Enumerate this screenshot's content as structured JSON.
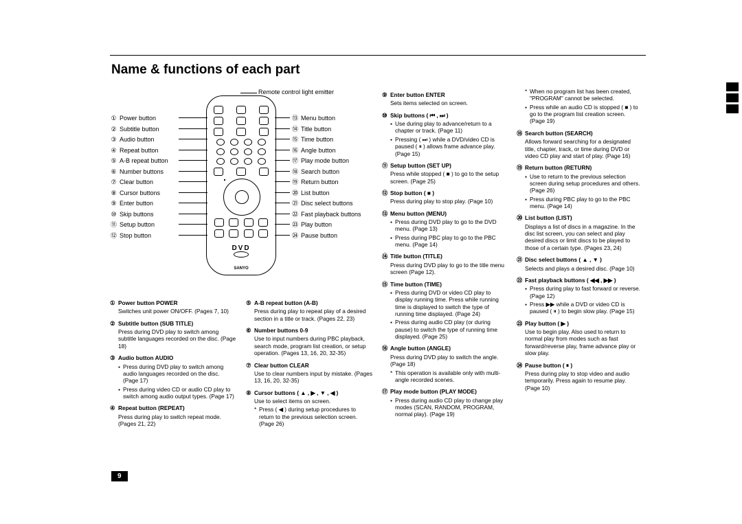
{
  "page_number": "9",
  "title": "Name & functions of each part",
  "emitter": "Remote control light emitter",
  "left_labels": [
    {
      "n": "①",
      "t": "Power button"
    },
    {
      "n": "②",
      "t": "Subtitle button"
    },
    {
      "n": "③",
      "t": "Audio button"
    },
    {
      "n": "④",
      "t": "Repeat button"
    },
    {
      "n": "⑤",
      "t": "A-B repeat button"
    },
    {
      "n": "⑥",
      "t": "Number buttons"
    },
    {
      "n": "⑦",
      "t": "Clear button"
    },
    {
      "n": "⑧",
      "t": "Cursor buttons"
    },
    {
      "n": "⑨",
      "t": "Enter button"
    },
    {
      "n": "⑩",
      "t": "Skip buttons"
    },
    {
      "n": "⑪",
      "t": "Setup button"
    },
    {
      "n": "⑫",
      "t": "Stop button"
    }
  ],
  "right_labels": [
    {
      "n": "⑬",
      "t": "Menu button"
    },
    {
      "n": "⑭",
      "t": "Title button"
    },
    {
      "n": "⑮",
      "t": "Time button"
    },
    {
      "n": "⑯",
      "t": "Angle button"
    },
    {
      "n": "⑰",
      "t": "Play mode button"
    },
    {
      "n": "⑱",
      "t": "Search button"
    },
    {
      "n": "⑲",
      "t": "Return button"
    },
    {
      "n": "⑳",
      "t": "List button"
    },
    {
      "n": "㉑",
      "t": "Disc select buttons"
    },
    {
      "n": "㉒",
      "t": "Fast playback buttons"
    },
    {
      "n": "㉓",
      "t": "Play button"
    },
    {
      "n": "㉔",
      "t": "Pause button"
    }
  ],
  "dvd_logo": "DVD",
  "brand": "SANYO",
  "col1": [
    {
      "n": "①",
      "h": "Power button POWER",
      "lines": [
        {
          "t": "desc",
          "x": "Switches unit power ON/OFF. (Pages 7, 10)"
        }
      ]
    },
    {
      "n": "②",
      "h": "Subtitle button (SUB TITLE)",
      "lines": [
        {
          "t": "desc",
          "x": "Press during DVD play to switch among subtitle languages recorded on the disc. (Page 18)"
        }
      ]
    },
    {
      "n": "③",
      "h": "Audio button AUDIO",
      "lines": [
        {
          "t": "bul",
          "x": "Press during DVD play to switch among audio languages recorded on the disc. (Page 17)"
        },
        {
          "t": "bul",
          "x": "Press during video CD or audio CD play to switch among audio output types. (Page 17)"
        }
      ]
    },
    {
      "n": "④",
      "h": "Repeat button (REPEAT)",
      "lines": [
        {
          "t": "desc",
          "x": "Press during play to switch repeat mode. (Pages 21, 22)"
        }
      ]
    }
  ],
  "col2": [
    {
      "n": "⑤",
      "h": "A-B repeat button (A-B)",
      "lines": [
        {
          "t": "desc",
          "x": "Press during play to repeat play of a desired section in a title or track. (Pages 22, 23)"
        }
      ]
    },
    {
      "n": "⑥",
      "h": "Number buttons 0-9",
      "lines": [
        {
          "t": "desc",
          "x": "Use to input numbers during PBC playback, search mode, program list creation, or setup operation. (Pages 13, 16, 20, 32-35)"
        }
      ]
    },
    {
      "n": "⑦",
      "h": "Clear button CLEAR",
      "lines": [
        {
          "t": "desc",
          "x": "Use to clear numbers input by mistake. (Pages 13, 16, 20, 32-35)"
        }
      ]
    },
    {
      "n": "⑧",
      "h": "Cursor buttons ( ▲ , ▶ , ▼ , ◀ )",
      "lines": [
        {
          "t": "desc",
          "x": "Use to select items on screen."
        },
        {
          "t": "fn",
          "x": "Press ( ◀ ) during setup procedures to return to the previous selection screen. (Page 26)"
        }
      ]
    }
  ],
  "col3": [
    {
      "n": "⑨",
      "h": "Enter button ENTER",
      "lines": [
        {
          "t": "desc",
          "x": "Sets items selected on screen."
        }
      ]
    },
    {
      "n": "⑩",
      "h": "Skip buttons ( ⏮ , ⏭ )",
      "lines": [
        {
          "t": "bul",
          "x": "Use during play to advance/return to a chapter or track. (Page 11)"
        },
        {
          "t": "bul",
          "x": "Pressing ( ⏭ ) while a DVD/video CD is paused ( ⏸ ) allows frame advance play. (Page 15)"
        }
      ]
    },
    {
      "n": "⑪",
      "h": "Setup button (SET UP)",
      "lines": [
        {
          "t": "desc",
          "x": "Press while stopped ( ■ ) to go to the setup screen. (Page 25)"
        }
      ]
    },
    {
      "n": "⑫",
      "h": "Stop button ( ■ )",
      "lines": [
        {
          "t": "desc",
          "x": "Press during play to stop play. (Page 10)"
        }
      ]
    },
    {
      "n": "⑬",
      "h": "Menu button (MENU)",
      "lines": [
        {
          "t": "bul",
          "x": "Press during DVD play to go to the DVD menu. (Page 13)"
        },
        {
          "t": "bul",
          "x": "Press during PBC play to go to the PBC menu. (Page 14)"
        }
      ]
    },
    {
      "n": "⑭",
      "h": "Title button (TITLE)",
      "lines": [
        {
          "t": "desc",
          "x": "Press during DVD play to go to the title menu screen (Page 12)."
        }
      ]
    },
    {
      "n": "⑮",
      "h": "Time button (TIME)",
      "lines": [
        {
          "t": "bul",
          "x": "Press during DVD or video CD play to display running time. Press while running time is displayed to switch the type of running time displayed. (Page 24)"
        },
        {
          "t": "bul",
          "x": "Press during audio CD play (or during pause) to switch the type of running time displayed. (Page 25)"
        }
      ]
    },
    {
      "n": "⑯",
      "h": "Angle button (ANGLE)",
      "lines": [
        {
          "t": "desc",
          "x": "Press during DVD play to switch the angle. (Page 18)"
        },
        {
          "t": "fn",
          "x": "This operation is available only with multi-angle recorded scenes."
        }
      ]
    },
    {
      "n": "⑰",
      "h": "Play mode button (PLAY MODE)",
      "lines": [
        {
          "t": "bul",
          "x": "Press during audio CD play to change play modes (SCAN, RANDOM, PROGRAM, normal play). (Page 19)"
        }
      ]
    }
  ],
  "col4": [
    {
      "n": "",
      "h": "",
      "lines": [
        {
          "t": "fn",
          "x": "When no program list has been created, \"PROGRAM\" cannot be selected."
        },
        {
          "t": "bul",
          "x": "Press while an audio CD is stopped ( ■ ) to go to the program list creation screen. (Page 19)"
        }
      ]
    },
    {
      "n": "⑱",
      "h": "Search button (SEARCH)",
      "lines": [
        {
          "t": "desc",
          "x": "Allows forward searching for a designated title, chapter, track, or time during DVD or video CD play and start of play. (Page 16)"
        }
      ]
    },
    {
      "n": "⑲",
      "h": "Return button (RETURN)",
      "lines": [
        {
          "t": "bul",
          "x": "Use to return to the previous selection screen during setup procedures and others. (Page 26)"
        },
        {
          "t": "bul",
          "x": "Press during PBC play to go to the PBC menu. (Page 14)"
        }
      ]
    },
    {
      "n": "⑳",
      "h": "List button (LIST)",
      "lines": [
        {
          "t": "desc",
          "x": "Displays a list of discs in a magazine. In the disc list screen, you can select and play desired discs or limit discs to be played to those of a certain type. (Pages 23, 24)"
        }
      ]
    },
    {
      "n": "㉑",
      "h": "Disc select buttons ( ▲ , ▼ )",
      "lines": [
        {
          "t": "desc",
          "x": "Selects and plays a desired disc. (Page 10)"
        }
      ]
    },
    {
      "n": "㉒",
      "h": "Fast playback buttons ( ◀◀ , ▶▶ )",
      "lines": [
        {
          "t": "bul",
          "x": "Press during play to fast forward or reverse. (Page 12)"
        },
        {
          "t": "bul",
          "x": "Press ▶▶ while a DVD or video CD is paused ( ⏸ ) to begin slow play. (Page 15)"
        }
      ]
    },
    {
      "n": "㉓",
      "h": "Play button ( ▶ )",
      "lines": [
        {
          "t": "desc",
          "x": "Use to begin play.\nAlso used to return to normal play from modes such as fast forward/reverse play, frame advance play or slow play."
        }
      ]
    },
    {
      "n": "㉔",
      "h": "Pause button ( ⏸ )",
      "lines": [
        {
          "t": "desc",
          "x": "Press during play to stop video and audio temporarily. Press again to resume play. (Page 10)"
        }
      ]
    }
  ]
}
